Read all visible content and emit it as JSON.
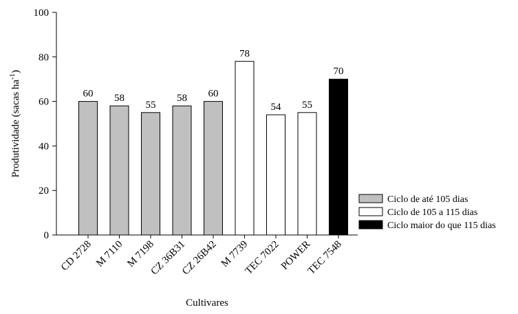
{
  "chart_data": {
    "type": "bar",
    "xlabel": "Cultivares",
    "ylabel": "Produtividade (sacas ha",
    "ylabel_superscript": "-1",
    "ylabel_close": ")",
    "ylim": [
      0,
      100
    ],
    "yticks": [
      0,
      20,
      40,
      60,
      80,
      100
    ],
    "grid": false,
    "legend_position": "right",
    "categories": [
      "CD 2728",
      "M 7110",
      "M 7198",
      "CZ 36B31",
      "CZ 26B42",
      "M 7739",
      "TEC 7022",
      "POWER",
      "TEC 7548"
    ],
    "values": [
      60,
      58,
      55,
      58,
      60,
      78,
      54,
      55,
      70
    ],
    "groups": [
      0,
      0,
      0,
      0,
      0,
      1,
      1,
      1,
      2
    ],
    "series": [
      {
        "name": "Ciclo de até 105 dias",
        "color": "#c0c0c0"
      },
      {
        "name": "Ciclo de 105 a 115 dias",
        "color": "#ffffff"
      },
      {
        "name": "Ciclo maior do que 115 dias",
        "color": "#000000"
      }
    ]
  }
}
